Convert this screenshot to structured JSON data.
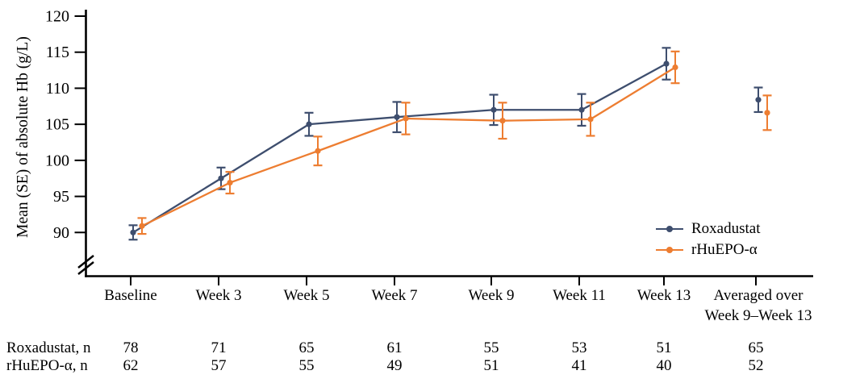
{
  "chart_data": {
    "type": "line",
    "title": "",
    "xlabel": "",
    "ylabel": "Mean (SE) of absolute Hb (g/L)",
    "yticks": [
      90,
      95,
      100,
      105,
      110,
      115,
      120
    ],
    "ylim": [
      88,
      120
    ],
    "y_axis_break": true,
    "grid": false,
    "legend_position": "lower right",
    "categories": [
      "Baseline",
      "Week 3",
      "Week 5",
      "Week 7",
      "Week 9",
      "Week 11",
      "Week 13",
      "Averaged over\nWeek 9–Week 13"
    ],
    "connected_points": 7,
    "error_bar_type": "SE",
    "series": [
      {
        "name": "Roxadustat",
        "color": "#3E4E6E",
        "values": [
          90.0,
          97.5,
          105.0,
          106.0,
          107.0,
          107.0,
          113.4,
          108.4
        ],
        "se": [
          1.0,
          1.5,
          1.6,
          2.1,
          2.1,
          2.2,
          2.2,
          1.7
        ]
      },
      {
        "name": "rHuEPO-α",
        "color": "#ED7D31",
        "values": [
          90.9,
          96.9,
          101.3,
          105.8,
          105.5,
          105.7,
          112.9,
          106.6
        ],
        "se": [
          1.1,
          1.5,
          2.0,
          2.2,
          2.5,
          2.3,
          2.2,
          2.4
        ]
      }
    ]
  },
  "counts_table": {
    "rows": [
      {
        "label": "Roxadustat, n",
        "values": [
          "78",
          "71",
          "65",
          "61",
          "55",
          "53",
          "51",
          "65"
        ]
      },
      {
        "label": "rHuEPO-α, n",
        "values": [
          "62",
          "57",
          "55",
          "49",
          "51",
          "41",
          "40",
          "52"
        ]
      }
    ]
  },
  "colors": {
    "axis": "#000000",
    "roxadustat": "#3E4E6E",
    "rhuepo_alpha": "#ED7D31",
    "background": "#FFFFFF"
  }
}
